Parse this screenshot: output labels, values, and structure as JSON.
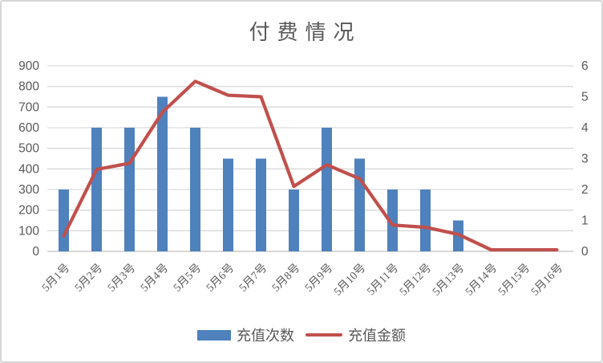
{
  "chart_data": {
    "type": "combo",
    "title": "付费情况",
    "categories": [
      "5月1号",
      "5月2号",
      "5月3号",
      "5月4号",
      "5月5号",
      "5月6号",
      "5月7号",
      "5月8号",
      "5月9号",
      "5月10号",
      "5月11号",
      "5月12号",
      "5月13号",
      "5月14号",
      "5月15号",
      "5月16号"
    ],
    "series": [
      {
        "name": "充值次数",
        "type": "bar",
        "axis": "left",
        "color": "#4f81bd",
        "values": [
          300,
          600,
          600,
          750,
          600,
          450,
          450,
          300,
          600,
          450,
          300,
          300,
          150,
          0,
          0,
          0
        ]
      },
      {
        "name": "充值金额",
        "type": "line",
        "axis": "right",
        "color": "#c0504d",
        "values": [
          0.5,
          2.65,
          2.85,
          4.5,
          5.5,
          5.05,
          5.0,
          2.1,
          2.8,
          2.35,
          0.85,
          0.78,
          0.55,
          0.05,
          0.05,
          0.05
        ]
      }
    ],
    "left_axis": {
      "min": 0,
      "max": 900,
      "step": 100,
      "ticks": [
        900,
        800,
        700,
        600,
        500,
        400,
        300,
        200,
        100,
        0
      ]
    },
    "right_axis": {
      "min": 0,
      "max": 6,
      "step": 1,
      "ticks": [
        6,
        5,
        4,
        3,
        2,
        1,
        0
      ]
    },
    "grid": true,
    "legend_position": "bottom",
    "colors": {
      "text": "#595959",
      "gridline": "#d9d9d9",
      "axis_line": "#c0c0c0"
    }
  }
}
